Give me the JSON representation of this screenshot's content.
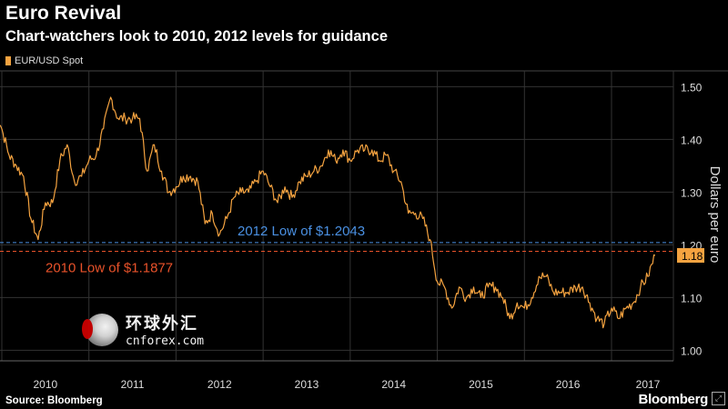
{
  "header": {
    "title": "Euro Revival",
    "subtitle": "Chart-watchers look to 2010, 2012 levels for guidance"
  },
  "footer": {
    "source": "Source: Bloomberg",
    "brand": "Bloomberg",
    "brand_icon": "expand-icon"
  },
  "watermark": {
    "chinese": "环球外汇",
    "url": "cnforex.com"
  },
  "colors": {
    "background": "#000000",
    "series": "#f5a340",
    "grid": "#333333",
    "line_2012": "#4a90e2",
    "line_2010": "#e8522a",
    "last_value_bg": "#f5a340"
  },
  "chart_data": {
    "type": "line",
    "title": "Euro Revival",
    "subtitle": "Chart-watchers look to 2010, 2012 levels for guidance",
    "legend": "EUR/USD Spot",
    "legend_position": "top-left",
    "ylabel": "Dollars per euro",
    "ylim": [
      0.98,
      1.53
    ],
    "y_ticks": [
      "1.00",
      "1.10",
      "1.20",
      "1.30",
      "1.40",
      "1.50"
    ],
    "x_ticks": [
      "2010",
      "2011",
      "2012",
      "2013",
      "2014",
      "2015",
      "2016",
      "2017"
    ],
    "grid": true,
    "last_value_label": "1.18",
    "reference_lines": [
      {
        "label": "2012 Low of $1.2043",
        "value": 1.2043
      },
      {
        "label": "2010 Low of $1.1877",
        "value": 1.1877
      }
    ],
    "series": [
      {
        "name": "EUR/USD Spot",
        "x": [
          "2009-12",
          "2010-01",
          "2010-02",
          "2010-03",
          "2010-04",
          "2010-05",
          "2010-06",
          "2010-07",
          "2010-08",
          "2010-09",
          "2010-10",
          "2010-11",
          "2010-12",
          "2011-01",
          "2011-02",
          "2011-03",
          "2011-04",
          "2011-05",
          "2011-06",
          "2011-07",
          "2011-08",
          "2011-09",
          "2011-10",
          "2011-11",
          "2011-12",
          "2012-01",
          "2012-02",
          "2012-03",
          "2012-04",
          "2012-05",
          "2012-06",
          "2012-07",
          "2012-08",
          "2012-09",
          "2012-10",
          "2012-11",
          "2012-12",
          "2013-01",
          "2013-02",
          "2013-03",
          "2013-04",
          "2013-05",
          "2013-06",
          "2013-07",
          "2013-08",
          "2013-09",
          "2013-10",
          "2013-11",
          "2013-12",
          "2014-01",
          "2014-02",
          "2014-03",
          "2014-04",
          "2014-05",
          "2014-06",
          "2014-07",
          "2014-08",
          "2014-09",
          "2014-10",
          "2014-11",
          "2014-12",
          "2015-01",
          "2015-02",
          "2015-03",
          "2015-04",
          "2015-05",
          "2015-06",
          "2015-07",
          "2015-08",
          "2015-09",
          "2015-10",
          "2015-11",
          "2015-12",
          "2016-01",
          "2016-02",
          "2016-03",
          "2016-04",
          "2016-05",
          "2016-06",
          "2016-07",
          "2016-08",
          "2016-09",
          "2016-10",
          "2016-11",
          "2016-12",
          "2017-01",
          "2017-02",
          "2017-03",
          "2017-04",
          "2017-05",
          "2017-06",
          "2017-07"
        ],
        "y": [
          1.46,
          1.42,
          1.37,
          1.35,
          1.33,
          1.25,
          1.21,
          1.28,
          1.28,
          1.36,
          1.39,
          1.32,
          1.33,
          1.36,
          1.37,
          1.42,
          1.48,
          1.44,
          1.44,
          1.44,
          1.44,
          1.34,
          1.39,
          1.34,
          1.3,
          1.31,
          1.33,
          1.33,
          1.32,
          1.24,
          1.26,
          1.22,
          1.25,
          1.29,
          1.3,
          1.3,
          1.32,
          1.34,
          1.31,
          1.28,
          1.31,
          1.29,
          1.32,
          1.33,
          1.34,
          1.35,
          1.38,
          1.36,
          1.38,
          1.36,
          1.38,
          1.38,
          1.38,
          1.36,
          1.37,
          1.34,
          1.32,
          1.26,
          1.26,
          1.25,
          1.21,
          1.13,
          1.12,
          1.08,
          1.12,
          1.1,
          1.12,
          1.1,
          1.12,
          1.12,
          1.1,
          1.06,
          1.09,
          1.08,
          1.1,
          1.14,
          1.14,
          1.11,
          1.11,
          1.11,
          1.12,
          1.12,
          1.09,
          1.06,
          1.05,
          1.08,
          1.06,
          1.08,
          1.09,
          1.12,
          1.14,
          1.18
        ]
      }
    ]
  }
}
